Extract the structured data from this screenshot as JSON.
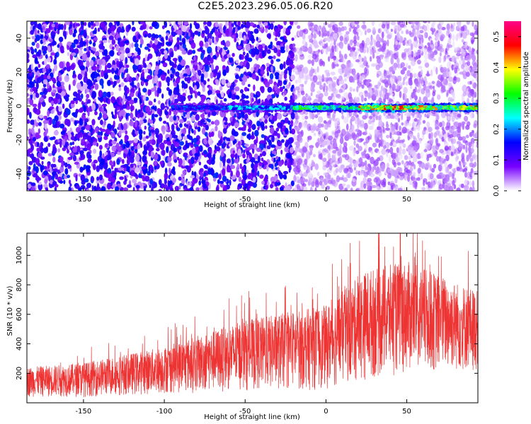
{
  "title": "C2E5.2023.296.05.06.R20",
  "chart_data": [
    {
      "type": "heatmap",
      "xlabel": "Height of straight line (km)",
      "ylabel": "Frequency (Hz)",
      "xlim": [
        -185,
        94
      ],
      "ylim": [
        -50,
        50
      ],
      "xticks": [
        -150,
        -100,
        -50,
        0,
        50
      ],
      "yticks": [
        -40,
        -20,
        0,
        20,
        40
      ],
      "colorbar": {
        "label": "Normalized spectral amplitude",
        "range": [
          0.0,
          0.55
        ],
        "ticks": [
          0.0,
          0.1,
          0.2,
          0.3,
          0.4,
          0.5
        ],
        "colors": [
          "#ffffff",
          "#7700ff",
          "#0000ff",
          "#00ffff",
          "#00ff00",
          "#ffff00",
          "#ff0000",
          "#ff0088"
        ]
      },
      "band": {
        "frequency_hz": -1,
        "onset_km": -95,
        "segments": [
          {
            "x0": -95,
            "x1": -60,
            "amplitude": 0.18
          },
          {
            "x0": -60,
            "x1": -20,
            "amplitude": 0.22
          },
          {
            "x0": -20,
            "x1": 20,
            "amplitude": 0.3
          },
          {
            "x0": 20,
            "x1": 60,
            "amplitude": 0.45
          },
          {
            "x0": 60,
            "x1": 94,
            "amplitude": 0.38
          }
        ]
      },
      "background_amplitude": {
        "left_of_minus20": 0.08,
        "right_of_minus20": 0.03
      }
    },
    {
      "type": "line",
      "xlabel": "Height of straight line (km)",
      "ylabel": "SNR (10 * v/v)",
      "xlim": [
        -185,
        94
      ],
      "ylim": [
        0,
        1150
      ],
      "xticks": [
        -150,
        -100,
        -50,
        0,
        50
      ],
      "yticks": [
        200,
        400,
        600,
        800,
        1000
      ],
      "series_color": "#ee3333",
      "envelope_km": [
        -185,
        -150,
        -100,
        -50,
        0,
        25,
        50,
        94
      ],
      "envelope_upper": [
        240,
        270,
        380,
        560,
        660,
        900,
        960,
        760
      ],
      "envelope_lower": [
        40,
        40,
        60,
        80,
        90,
        150,
        200,
        210
      ]
    }
  ]
}
